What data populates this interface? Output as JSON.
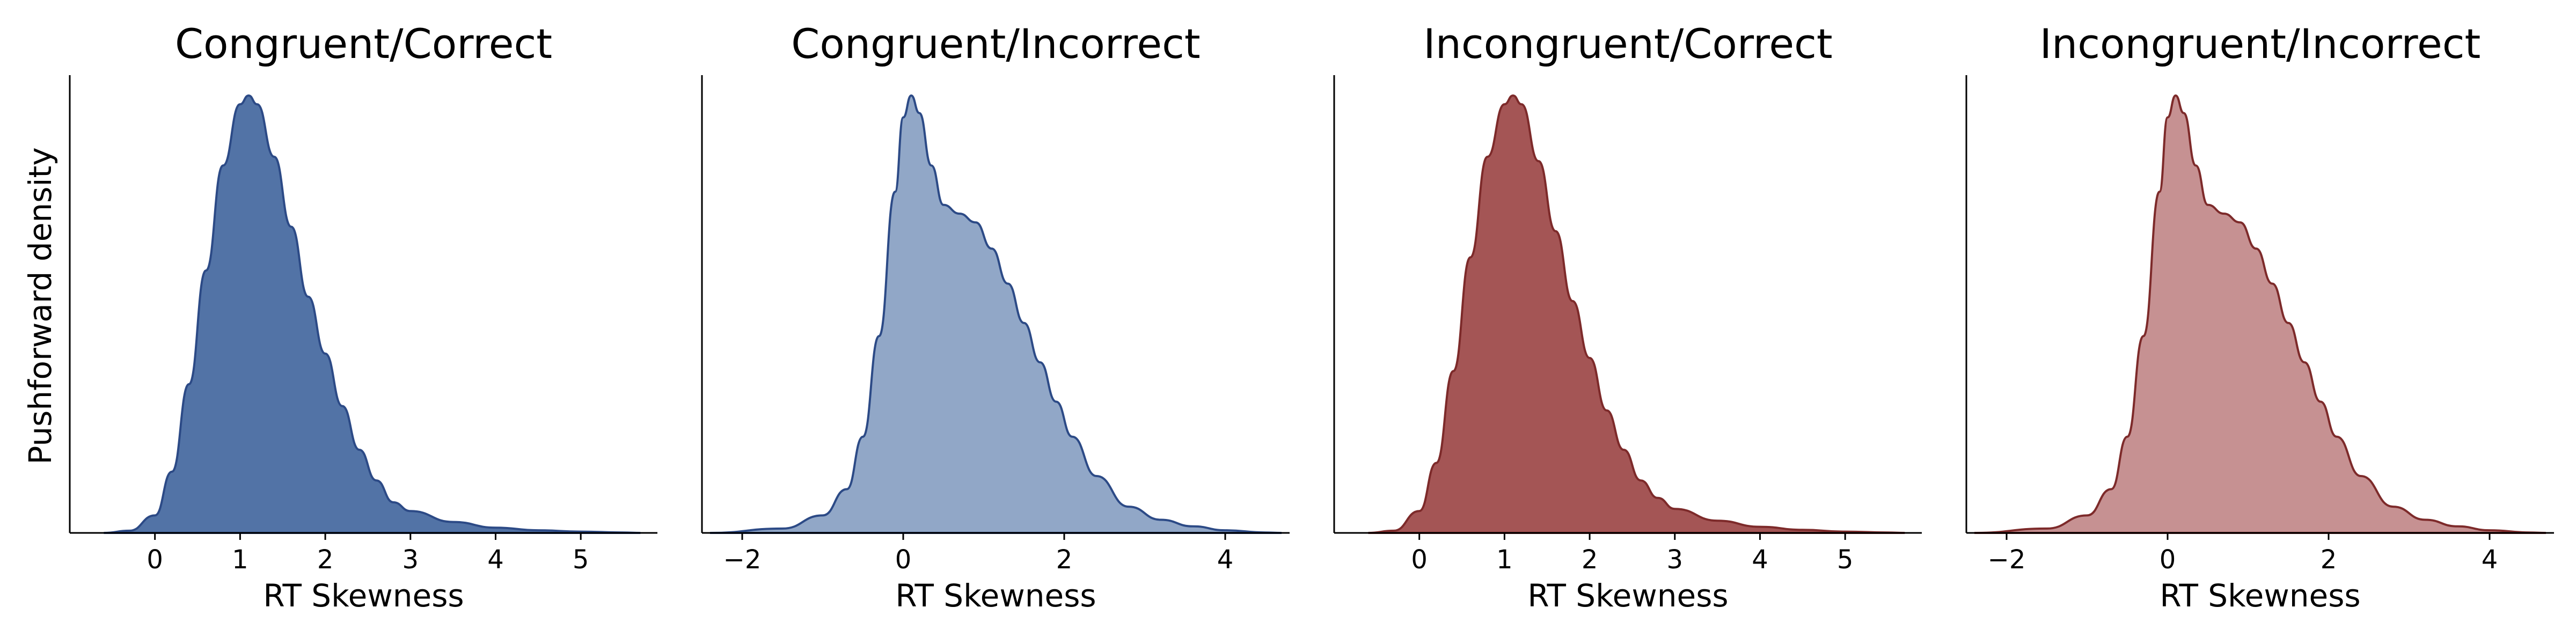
{
  "figure": {
    "ylabel": "Pushforward density"
  },
  "chart_data": [
    {
      "type": "area",
      "title": "Congruent/Correct",
      "xlabel": "RT Skewness",
      "ylabel": "Pushforward density",
      "xlim": [
        -1.0,
        5.9
      ],
      "xticks": [
        0,
        1,
        2,
        3,
        4,
        5
      ],
      "xtick_labels": [
        "0",
        "1",
        "2",
        "3",
        "4",
        "5"
      ],
      "fill_color": "#5273a6",
      "line_color": "#2c4a86",
      "series": [
        {
          "x": [
            -0.6,
            -0.3,
            0.0,
            0.2,
            0.4,
            0.6,
            0.8,
            1.0,
            1.1,
            1.2,
            1.4,
            1.6,
            1.8,
            2.0,
            2.2,
            2.4,
            2.6,
            2.8,
            3.0,
            3.5,
            4.0,
            4.5,
            5.0,
            5.5,
            5.7
          ],
          "y": [
            0.0,
            0.005,
            0.04,
            0.14,
            0.34,
            0.6,
            0.84,
            0.98,
            1.0,
            0.98,
            0.86,
            0.7,
            0.54,
            0.41,
            0.29,
            0.19,
            0.12,
            0.07,
            0.05,
            0.025,
            0.012,
            0.006,
            0.003,
            0.001,
            0.0
          ]
        }
      ]
    },
    {
      "type": "area",
      "title": "Congruent/Incorrect",
      "xlabel": "RT Skewness",
      "ylabel": "",
      "xlim": [
        -2.5,
        4.8
      ],
      "xticks": [
        -2,
        0,
        2,
        4
      ],
      "xtick_labels": [
        "−2",
        "0",
        "2",
        "4"
      ],
      "fill_color": "#91a7c7",
      "line_color": "#2c4a86",
      "series": [
        {
          "x": [
            -2.4,
            -1.5,
            -1.0,
            -0.7,
            -0.5,
            -0.3,
            -0.1,
            0.0,
            0.1,
            0.2,
            0.35,
            0.5,
            0.7,
            0.9,
            1.1,
            1.3,
            1.5,
            1.7,
            1.9,
            2.1,
            2.4,
            2.8,
            3.2,
            3.6,
            4.0,
            4.5,
            4.7
          ],
          "y": [
            0.0,
            0.01,
            0.04,
            0.1,
            0.22,
            0.45,
            0.78,
            0.95,
            1.0,
            0.96,
            0.84,
            0.75,
            0.73,
            0.71,
            0.65,
            0.57,
            0.48,
            0.39,
            0.3,
            0.22,
            0.13,
            0.06,
            0.03,
            0.015,
            0.006,
            0.001,
            0.0
          ]
        }
      ]
    },
    {
      "type": "area",
      "title": "Incongruent/Correct",
      "xlabel": "RT Skewness",
      "ylabel": "",
      "xlim": [
        -1.0,
        5.9
      ],
      "xticks": [
        0,
        1,
        2,
        3,
        4,
        5
      ],
      "xtick_labels": [
        "0",
        "1",
        "2",
        "3",
        "4",
        "5"
      ],
      "fill_color": "#a45555",
      "line_color": "#7d2a2a",
      "series": [
        {
          "x": [
            -0.6,
            -0.3,
            0.0,
            0.2,
            0.4,
            0.6,
            0.8,
            1.0,
            1.1,
            1.2,
            1.4,
            1.6,
            1.8,
            2.0,
            2.2,
            2.4,
            2.6,
            2.8,
            3.0,
            3.5,
            4.0,
            4.5,
            5.0,
            5.5,
            5.7
          ],
          "y": [
            0.0,
            0.005,
            0.05,
            0.16,
            0.37,
            0.63,
            0.86,
            0.98,
            1.0,
            0.98,
            0.85,
            0.69,
            0.53,
            0.4,
            0.28,
            0.19,
            0.12,
            0.08,
            0.055,
            0.028,
            0.014,
            0.007,
            0.003,
            0.001,
            0.0
          ]
        }
      ]
    },
    {
      "type": "area",
      "title": "Incongruent/Incorrect",
      "xlabel": "RT Skewness",
      "ylabel": "",
      "xlim": [
        -2.5,
        4.8
      ],
      "xticks": [
        -2,
        0,
        2,
        4
      ],
      "xtick_labels": [
        "−2",
        "0",
        "2",
        "4"
      ],
      "fill_color": "#c69192",
      "line_color": "#7d2a2a",
      "series": [
        {
          "x": [
            -2.4,
            -1.5,
            -1.0,
            -0.7,
            -0.5,
            -0.3,
            -0.1,
            0.0,
            0.1,
            0.2,
            0.35,
            0.5,
            0.7,
            0.9,
            1.1,
            1.3,
            1.5,
            1.7,
            1.9,
            2.1,
            2.4,
            2.8,
            3.2,
            3.6,
            4.0,
            4.5,
            4.7
          ],
          "y": [
            0.0,
            0.01,
            0.04,
            0.1,
            0.22,
            0.45,
            0.78,
            0.95,
            1.0,
            0.96,
            0.84,
            0.75,
            0.73,
            0.71,
            0.65,
            0.57,
            0.48,
            0.39,
            0.3,
            0.22,
            0.13,
            0.06,
            0.03,
            0.015,
            0.006,
            0.001,
            0.0
          ]
        }
      ]
    }
  ]
}
